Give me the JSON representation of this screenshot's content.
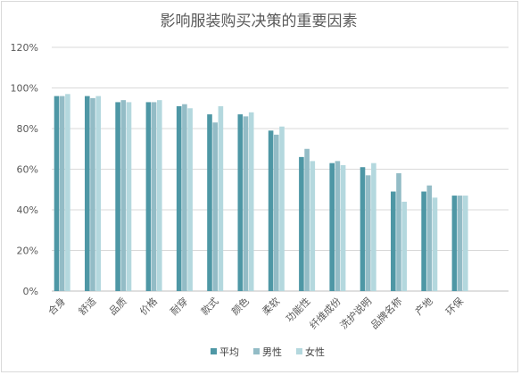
{
  "chart_data": {
    "type": "bar",
    "title": "影响服装购买决策的重要因素",
    "xlabel": "",
    "ylabel": "",
    "ylim": [
      0,
      120
    ],
    "y_ticks": [
      "0%",
      "20%",
      "40%",
      "60%",
      "80%",
      "100%",
      "120%"
    ],
    "y_tick_values": [
      0,
      20,
      40,
      60,
      80,
      100,
      120
    ],
    "grid": true,
    "legend_position": "bottom",
    "categories": [
      "合身",
      "舒适",
      "品质",
      "价格",
      "耐穿",
      "款式",
      "颜色",
      "柔软",
      "功能性",
      "纤维成份",
      "洗护说明",
      "品牌名称",
      "产地",
      "环保"
    ],
    "series": [
      {
        "name": "平均",
        "color": "#4e97a5",
        "values": [
          96,
          96,
          93,
          93,
          91,
          87,
          87,
          79,
          66,
          63,
          61,
          49,
          49,
          47
        ]
      },
      {
        "name": "男性",
        "color": "#93bcc6",
        "values": [
          96,
          95,
          94,
          93,
          92,
          83,
          86,
          77,
          70,
          64,
          57,
          58,
          52,
          47
        ]
      },
      {
        "name": "女性",
        "color": "#b4d8de",
        "values": [
          97,
          96,
          93,
          94,
          90,
          91,
          88,
          81,
          64,
          62,
          63,
          44,
          46,
          47
        ]
      }
    ]
  }
}
